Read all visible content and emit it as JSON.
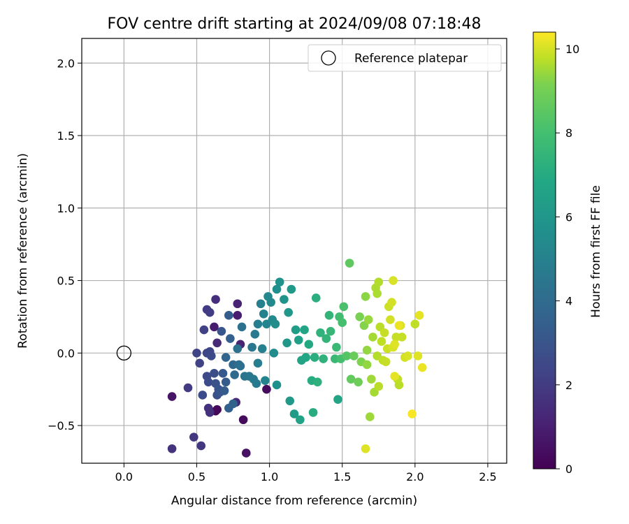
{
  "chart_data": {
    "type": "scatter",
    "title": "FOV centre drift starting at 2024/09/08 07:18:48",
    "xlabel": "Angular distance from reference (arcmin)",
    "ylabel": "Rotation from reference (arcmin)",
    "xlim": [
      -0.29,
      2.63
    ],
    "ylim": [
      -0.76,
      2.17
    ],
    "xticks": [
      0.0,
      0.5,
      1.0,
      1.5,
      2.0,
      2.5
    ],
    "xtick_labels": [
      "0.0",
      "0.5",
      "1.0",
      "1.5",
      "2.0",
      "2.5"
    ],
    "yticks": [
      -0.5,
      0.0,
      0.5,
      1.0,
      1.5,
      2.0
    ],
    "ytick_labels": [
      "−0.5",
      "0.0",
      "0.5",
      "1.0",
      "1.5",
      "2.0"
    ],
    "grid": true,
    "legend": {
      "position": "top-right",
      "entries": [
        {
          "label": "Reference platepar",
          "marker": "open-circle"
        }
      ]
    },
    "reference_point": {
      "x": 0.0,
      "y": 0.0
    },
    "colorbar": {
      "label": "Hours from first FF file",
      "range": [
        0,
        10.4
      ],
      "ticks": [
        0,
        2,
        4,
        6,
        8,
        10
      ],
      "tick_labels": [
        "0",
        "2",
        "4",
        "6",
        "8",
        "10"
      ],
      "colormap": "viridis"
    },
    "points": [
      {
        "x": 0.63,
        "y": -0.4,
        "t": 0.1
      },
      {
        "x": 0.64,
        "y": -0.39,
        "t": 0.2
      },
      {
        "x": 0.82,
        "y": -0.46,
        "t": 0.3
      },
      {
        "x": 0.84,
        "y": -0.69,
        "t": 0.5
      },
      {
        "x": 0.98,
        "y": -0.25,
        "t": 0.3
      },
      {
        "x": 0.33,
        "y": -0.3,
        "t": 0.6
      },
      {
        "x": 0.62,
        "y": 0.18,
        "t": 0.8
      },
      {
        "x": 0.78,
        "y": 0.26,
        "t": 0.9
      },
      {
        "x": 0.78,
        "y": 0.34,
        "t": 1.0
      },
      {
        "x": 0.8,
        "y": 0.06,
        "t": 1.1
      },
      {
        "x": 0.77,
        "y": -0.34,
        "t": 1.2
      },
      {
        "x": 0.64,
        "y": 0.07,
        "t": 1.3
      },
      {
        "x": 0.63,
        "y": 0.37,
        "t": 1.4
      },
      {
        "x": 0.58,
        "y": -0.38,
        "t": 1.5
      },
      {
        "x": 0.59,
        "y": -0.41,
        "t": 1.5
      },
      {
        "x": 0.33,
        "y": -0.66,
        "t": 1.6
      },
      {
        "x": 0.48,
        "y": -0.58,
        "t": 1.7
      },
      {
        "x": 0.53,
        "y": -0.64,
        "t": 1.7
      },
      {
        "x": 0.44,
        "y": -0.24,
        "t": 1.8
      },
      {
        "x": 0.57,
        "y": 0.3,
        "t": 1.8
      },
      {
        "x": 0.59,
        "y": 0.28,
        "t": 1.9
      },
      {
        "x": 0.55,
        "y": 0.16,
        "t": 2.0
      },
      {
        "x": 0.52,
        "y": -0.07,
        "t": 2.0
      },
      {
        "x": 0.5,
        "y": 0.0,
        "t": 2.1
      },
      {
        "x": 0.57,
        "y": 0.0,
        "t": 2.2
      },
      {
        "x": 0.59,
        "y": 0.01,
        "t": 2.2
      },
      {
        "x": 0.6,
        "y": -0.02,
        "t": 2.3
      },
      {
        "x": 0.57,
        "y": -0.16,
        "t": 2.3
      },
      {
        "x": 0.58,
        "y": -0.2,
        "t": 2.4
      },
      {
        "x": 0.54,
        "y": -0.29,
        "t": 2.4
      },
      {
        "x": 0.62,
        "y": -0.14,
        "t": 2.5
      },
      {
        "x": 0.63,
        "y": -0.21,
        "t": 2.6
      },
      {
        "x": 0.64,
        "y": -0.29,
        "t": 2.6
      },
      {
        "x": 0.65,
        "y": -0.25,
        "t": 2.7
      },
      {
        "x": 0.67,
        "y": 0.15,
        "t": 2.8
      },
      {
        "x": 0.66,
        "y": -0.27,
        "t": 2.8
      },
      {
        "x": 0.68,
        "y": -0.14,
        "t": 2.9
      },
      {
        "x": 0.69,
        "y": -0.26,
        "t": 3.0
      },
      {
        "x": 0.7,
        "y": -0.2,
        "t": 3.0
      },
      {
        "x": 0.72,
        "y": 0.26,
        "t": 3.1
      },
      {
        "x": 0.73,
        "y": 0.1,
        "t": 3.2
      },
      {
        "x": 0.72,
        "y": -0.38,
        "t": 3.2
      },
      {
        "x": 0.75,
        "y": -0.35,
        "t": 3.3
      },
      {
        "x": 0.7,
        "y": -0.03,
        "t": 3.4
      },
      {
        "x": 0.75,
        "y": -0.08,
        "t": 3.5
      },
      {
        "x": 0.76,
        "y": -0.15,
        "t": 3.6
      },
      {
        "x": 0.79,
        "y": -0.08,
        "t": 3.7
      },
      {
        "x": 0.8,
        "y": -0.09,
        "t": 3.8
      },
      {
        "x": 0.81,
        "y": 0.18,
        "t": 3.9
      },
      {
        "x": 0.78,
        "y": 0.03,
        "t": 3.9
      },
      {
        "x": 0.83,
        "y": -0.16,
        "t": 4.0
      },
      {
        "x": 0.86,
        "y": -0.16,
        "t": 4.1
      },
      {
        "x": 0.88,
        "y": 0.04,
        "t": 4.1
      },
      {
        "x": 0.89,
        "y": -0.18,
        "t": 4.2
      },
      {
        "x": 0.9,
        "y": 0.13,
        "t": 4.3
      },
      {
        "x": 0.91,
        "y": -0.21,
        "t": 4.3
      },
      {
        "x": 0.92,
        "y": 0.2,
        "t": 4.4
      },
      {
        "x": 0.92,
        "y": -0.07,
        "t": 4.4
      },
      {
        "x": 0.94,
        "y": 0.34,
        "t": 4.5
      },
      {
        "x": 0.95,
        "y": 0.03,
        "t": 4.5
      },
      {
        "x": 0.96,
        "y": 0.27,
        "t": 4.6
      },
      {
        "x": 0.97,
        "y": -0.19,
        "t": 4.7
      },
      {
        "x": 0.98,
        "y": 0.2,
        "t": 4.7
      },
      {
        "x": 0.99,
        "y": 0.39,
        "t": 4.8
      },
      {
        "x": 1.01,
        "y": 0.35,
        "t": 4.9
      },
      {
        "x": 1.02,
        "y": 0.23,
        "t": 4.9
      },
      {
        "x": 1.03,
        "y": 0.0,
        "t": 5.0
      },
      {
        "x": 1.04,
        "y": 0.2,
        "t": 5.1
      },
      {
        "x": 1.05,
        "y": 0.44,
        "t": 5.2
      },
      {
        "x": 1.05,
        "y": -0.22,
        "t": 5.2
      },
      {
        "x": 1.07,
        "y": 0.49,
        "t": 5.3
      },
      {
        "x": 1.1,
        "y": 0.37,
        "t": 5.4
      },
      {
        "x": 1.12,
        "y": 0.07,
        "t": 5.5
      },
      {
        "x": 1.13,
        "y": 0.28,
        "t": 5.5
      },
      {
        "x": 1.14,
        "y": -0.33,
        "t": 5.6
      },
      {
        "x": 1.15,
        "y": 0.44,
        "t": 5.6
      },
      {
        "x": 1.17,
        "y": -0.42,
        "t": 5.7
      },
      {
        "x": 1.18,
        "y": 0.16,
        "t": 5.8
      },
      {
        "x": 1.2,
        "y": 0.09,
        "t": 5.9
      },
      {
        "x": 1.21,
        "y": -0.46,
        "t": 6.0
      },
      {
        "x": 1.22,
        "y": -0.05,
        "t": 6.1
      },
      {
        "x": 1.24,
        "y": 0.16,
        "t": 6.1
      },
      {
        "x": 1.25,
        "y": -0.03,
        "t": 6.2
      },
      {
        "x": 1.27,
        "y": 0.06,
        "t": 6.3
      },
      {
        "x": 1.29,
        "y": -0.19,
        "t": 6.4
      },
      {
        "x": 1.3,
        "y": -0.41,
        "t": 6.4
      },
      {
        "x": 1.31,
        "y": -0.03,
        "t": 6.5
      },
      {
        "x": 1.32,
        "y": 0.38,
        "t": 6.5
      },
      {
        "x": 1.33,
        "y": -0.2,
        "t": 6.6
      },
      {
        "x": 1.35,
        "y": 0.14,
        "t": 6.7
      },
      {
        "x": 1.37,
        "y": -0.04,
        "t": 6.7
      },
      {
        "x": 1.39,
        "y": 0.1,
        "t": 6.8
      },
      {
        "x": 1.41,
        "y": 0.26,
        "t": 6.8
      },
      {
        "x": 1.42,
        "y": 0.15,
        "t": 6.9
      },
      {
        "x": 1.45,
        "y": -0.04,
        "t": 7.0
      },
      {
        "x": 1.46,
        "y": 0.04,
        "t": 7.0
      },
      {
        "x": 1.47,
        "y": -0.32,
        "t": 6.1
      },
      {
        "x": 1.48,
        "y": 0.25,
        "t": 7.2
      },
      {
        "x": 1.49,
        "y": -0.04,
        "t": 7.3
      },
      {
        "x": 1.5,
        "y": 0.21,
        "t": 7.3
      },
      {
        "x": 1.51,
        "y": 0.32,
        "t": 7.4
      },
      {
        "x": 1.53,
        "y": -0.02,
        "t": 7.6
      },
      {
        "x": 1.55,
        "y": 0.62,
        "t": 7.8
      },
      {
        "x": 1.56,
        "y": -0.18,
        "t": 7.9
      },
      {
        "x": 1.58,
        "y": -0.02,
        "t": 8.0
      },
      {
        "x": 1.61,
        "y": -0.2,
        "t": 8.1
      },
      {
        "x": 1.62,
        "y": 0.25,
        "t": 8.3
      },
      {
        "x": 1.63,
        "y": -0.06,
        "t": 8.4
      },
      {
        "x": 1.65,
        "y": 0.19,
        "t": 8.5
      },
      {
        "x": 1.66,
        "y": 0.39,
        "t": 8.6
      },
      {
        "x": 1.66,
        "y": -0.66,
        "t": 9.9
      },
      {
        "x": 1.67,
        "y": 0.02,
        "t": 8.7
      },
      {
        "x": 1.67,
        "y": -0.08,
        "t": 8.7
      },
      {
        "x": 1.68,
        "y": 0.23,
        "t": 8.8
      },
      {
        "x": 1.69,
        "y": -0.44,
        "t": 8.9
      },
      {
        "x": 1.7,
        "y": -0.18,
        "t": 8.9
      },
      {
        "x": 1.71,
        "y": 0.11,
        "t": 9.0
      },
      {
        "x": 1.72,
        "y": -0.27,
        "t": 9.0
      },
      {
        "x": 1.73,
        "y": 0.45,
        "t": 9.1
      },
      {
        "x": 1.74,
        "y": 0.41,
        "t": 9.1
      },
      {
        "x": 1.74,
        "y": -0.02,
        "t": 9.2
      },
      {
        "x": 1.75,
        "y": 0.49,
        "t": 9.2
      },
      {
        "x": 1.75,
        "y": -0.23,
        "t": 9.3
      },
      {
        "x": 1.76,
        "y": 0.18,
        "t": 9.3
      },
      {
        "x": 1.77,
        "y": 0.08,
        "t": 9.4
      },
      {
        "x": 1.78,
        "y": -0.05,
        "t": 9.4
      },
      {
        "x": 1.79,
        "y": 0.14,
        "t": 9.5
      },
      {
        "x": 1.8,
        "y": -0.06,
        "t": 9.5
      },
      {
        "x": 1.81,
        "y": 0.03,
        "t": 9.6
      },
      {
        "x": 1.82,
        "y": 0.32,
        "t": 9.6
      },
      {
        "x": 1.83,
        "y": 0.23,
        "t": 9.7
      },
      {
        "x": 1.84,
        "y": 0.35,
        "t": 9.7
      },
      {
        "x": 1.85,
        "y": 0.5,
        "t": 9.8
      },
      {
        "x": 1.85,
        "y": 0.04,
        "t": 9.8
      },
      {
        "x": 1.86,
        "y": 0.06,
        "t": 9.9
      },
      {
        "x": 1.86,
        "y": -0.16,
        "t": 10.0
      },
      {
        "x": 1.87,
        "y": 0.11,
        "t": 9.5
      },
      {
        "x": 1.88,
        "y": -0.18,
        "t": 9.4
      },
      {
        "x": 1.89,
        "y": -0.22,
        "t": 9.3
      },
      {
        "x": 1.89,
        "y": 0.19,
        "t": 10.1
      },
      {
        "x": 1.9,
        "y": 0.19,
        "t": 9.6
      },
      {
        "x": 1.91,
        "y": 0.11,
        "t": 9.5
      },
      {
        "x": 1.93,
        "y": -0.03,
        "t": 9.7
      },
      {
        "x": 1.95,
        "y": -0.02,
        "t": 9.8
      },
      {
        "x": 1.98,
        "y": -0.42,
        "t": 10.3
      },
      {
        "x": 2.0,
        "y": 0.2,
        "t": 9.4
      },
      {
        "x": 2.02,
        "y": -0.02,
        "t": 9.9
      },
      {
        "x": 2.03,
        "y": 0.26,
        "t": 10.0
      },
      {
        "x": 2.05,
        "y": -0.1,
        "t": 10.1
      }
    ]
  }
}
